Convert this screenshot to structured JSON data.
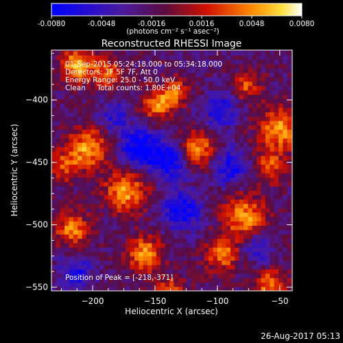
{
  "colorbar": {
    "ticks": [
      "-0.0080",
      "-0.0048",
      "-0.0016",
      "0.0016",
      "0.0048",
      "0.0080"
    ],
    "units_label": "(photons cm⁻² s⁻¹ asec⁻²)",
    "range": [
      -0.008,
      0.008
    ]
  },
  "chart_data": {
    "type": "heatmap",
    "title": "Reconstructed RHESSI Image",
    "xlabel": "Heliocentric X (arcsec)",
    "ylabel": "Heliocentric Y (arcsec)",
    "xlim": [
      -233,
      -40
    ],
    "ylim": [
      -553,
      -360
    ],
    "x_ticks": [
      -200,
      -150,
      -100,
      -50
    ],
    "y_ticks": [
      -400,
      -450,
      -500,
      -550
    ],
    "annotations": [
      "01-Sep-2015 05:24:18.000 to 05:34:18.000",
      "Detectors: 1F 5F 7F, Att 0",
      "Energy Range: 25.0 - 50.0 keV",
      "Clean     Total counts: 1.80E+04"
    ],
    "peak_label": "Position of Peak = [-218,-371]",
    "peak": [
      -218,
      -371
    ],
    "sources": [
      {
        "x": -215,
        "y": -374,
        "amp": 1.05,
        "s": 9
      },
      {
        "x": -190,
        "y": -380,
        "amp": 0.75,
        "s": 9
      },
      {
        "x": -205,
        "y": -440,
        "amp": 0.95,
        "s": 12
      },
      {
        "x": -150,
        "y": -405,
        "amp": 0.85,
        "s": 9
      },
      {
        "x": -135,
        "y": -395,
        "amp": 0.7,
        "s": 8
      },
      {
        "x": -118,
        "y": -440,
        "amp": 0.95,
        "s": 10
      },
      {
        "x": -175,
        "y": -475,
        "amp": 0.95,
        "s": 12
      },
      {
        "x": -78,
        "y": -390,
        "amp": 0.7,
        "s": 8
      },
      {
        "x": -52,
        "y": -425,
        "amp": 0.95,
        "s": 12
      },
      {
        "x": -60,
        "y": -455,
        "amp": 0.7,
        "s": 9
      },
      {
        "x": -80,
        "y": -495,
        "amp": 0.95,
        "s": 12
      },
      {
        "x": -98,
        "y": -525,
        "amp": 0.8,
        "s": 10
      },
      {
        "x": -218,
        "y": -505,
        "amp": 0.85,
        "s": 10
      },
      {
        "x": -160,
        "y": -525,
        "amp": 0.95,
        "s": 10
      },
      {
        "x": -140,
        "y": -555,
        "amp": 0.65,
        "s": 9
      },
      {
        "x": -60,
        "y": -550,
        "amp": 0.85,
        "s": 9
      },
      {
        "x": -225,
        "y": -455,
        "amp": 0.6,
        "s": 9
      },
      {
        "x": -165,
        "y": -440,
        "amp": -0.9,
        "s": 11
      },
      {
        "x": -140,
        "y": -450,
        "amp": -0.9,
        "s": 11
      },
      {
        "x": -130,
        "y": -490,
        "amp": -0.8,
        "s": 11
      },
      {
        "x": -90,
        "y": -455,
        "amp": -0.75,
        "s": 10
      },
      {
        "x": -100,
        "y": -410,
        "amp": -0.7,
        "s": 10
      },
      {
        "x": -215,
        "y": -540,
        "amp": -0.6,
        "s": 10
      },
      {
        "x": -185,
        "y": -415,
        "amp": -0.55,
        "s": 9
      },
      {
        "x": -70,
        "y": -520,
        "amp": -0.55,
        "s": 9
      }
    ]
  },
  "timestamp": "26-Aug-2017 05:13"
}
